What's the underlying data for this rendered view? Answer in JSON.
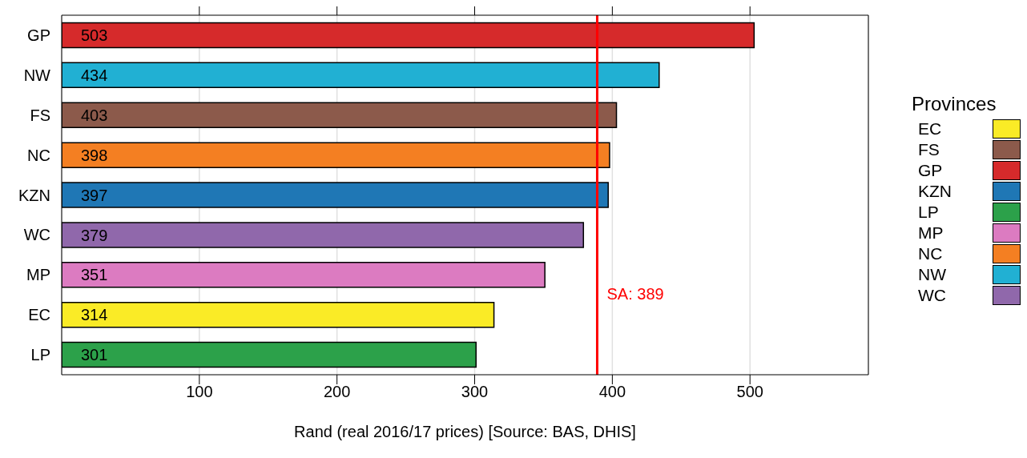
{
  "chart_data": {
    "type": "bar",
    "orientation": "horizontal",
    "xlabel": "Rand (real 2016/17 prices) [Source: BAS, DHIS]",
    "legend_title": "Provinces",
    "categories": [
      "GP",
      "NW",
      "FS",
      "NC",
      "KZN",
      "WC",
      "MP",
      "EC",
      "LP"
    ],
    "values": [
      503,
      434,
      403,
      398,
      397,
      379,
      351,
      314,
      301
    ],
    "colors": [
      "#d62a2b",
      "#21b0d3",
      "#8c5a4b",
      "#f47f22",
      "#1f77b5",
      "#9068ab",
      "#dc7bc1",
      "#faeb26",
      "#2ca14a"
    ],
    "xlim": [
      0,
      586
    ],
    "xticks": [
      100,
      200,
      300,
      400,
      500
    ],
    "grid": "x",
    "legend": "right",
    "data_labels": true,
    "ref_lines": [
      {
        "axis": "x",
        "value": 389,
        "label": "SA: 389",
        "color": "#ff0000"
      }
    ]
  }
}
